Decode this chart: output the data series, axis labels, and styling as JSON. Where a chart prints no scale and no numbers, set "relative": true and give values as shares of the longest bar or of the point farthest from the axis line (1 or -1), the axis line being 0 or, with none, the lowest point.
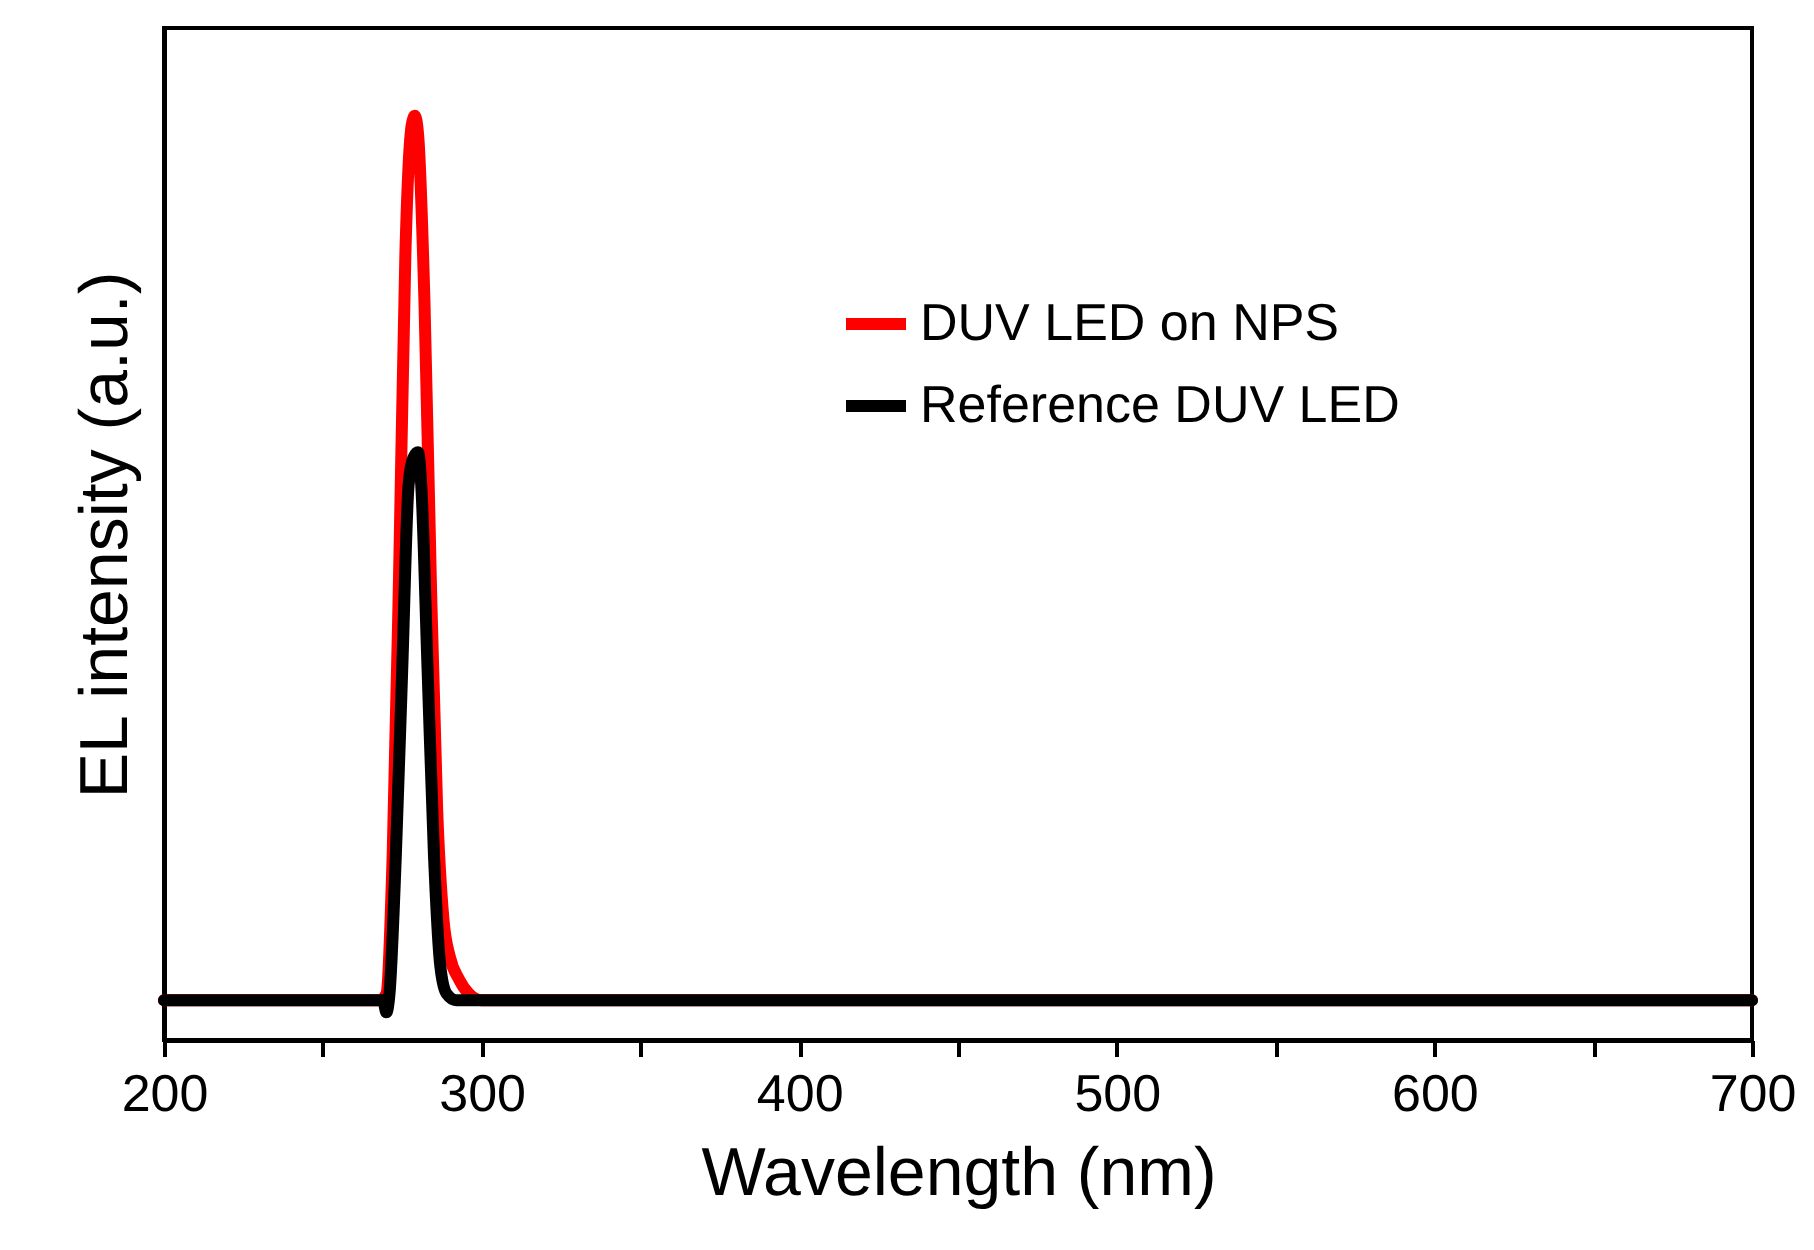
{
  "chart_data": {
    "type": "line",
    "relative": true,
    "xlabel": "Wavelength (nm)",
    "ylabel": "EL intensity (a.u.)",
    "xlim": [
      200,
      700
    ],
    "xticks": [
      200,
      {
        "value": 250,
        "label": null
      },
      300,
      {
        "value": 350,
        "label": null
      },
      400,
      {
        "value": 450,
        "label": null
      },
      500,
      {
        "value": 550,
        "label": null
      },
      600,
      {
        "value": 650,
        "label": null
      },
      700
    ],
    "grid": false,
    "legend": "top right",
    "marker": "none",
    "line_style": "solid",
    "series": [
      {
        "name": "DUV LED on NPS",
        "color": "#ff0000",
        "x": [
          200,
          268,
          270,
          272,
          274,
          276,
          278,
          279,
          280,
          282,
          284,
          286,
          288,
          290,
          293,
          296,
          300,
          700
        ],
        "values": [
          0.043,
          0.043,
          0.05,
          0.2,
          0.5,
          0.85,
          0.99,
          1,
          0.98,
          0.8,
          0.5,
          0.25,
          0.13,
          0.09,
          0.065,
          0.05,
          0.043,
          0.043
        ]
      },
      {
        "name": "Reference DUV LED",
        "color": "#000000",
        "x": [
          200,
          269,
          270,
          271,
          273,
          275,
          277,
          278.5,
          280,
          281,
          283,
          285,
          287,
          289,
          292,
          700
        ],
        "values": [
          0.043,
          0.043,
          0.03,
          0.05,
          0.2,
          0.4,
          0.6,
          0.63,
          0.636,
          0.6,
          0.4,
          0.2,
          0.08,
          0.05,
          0.043,
          0.043
        ]
      }
    ]
  }
}
